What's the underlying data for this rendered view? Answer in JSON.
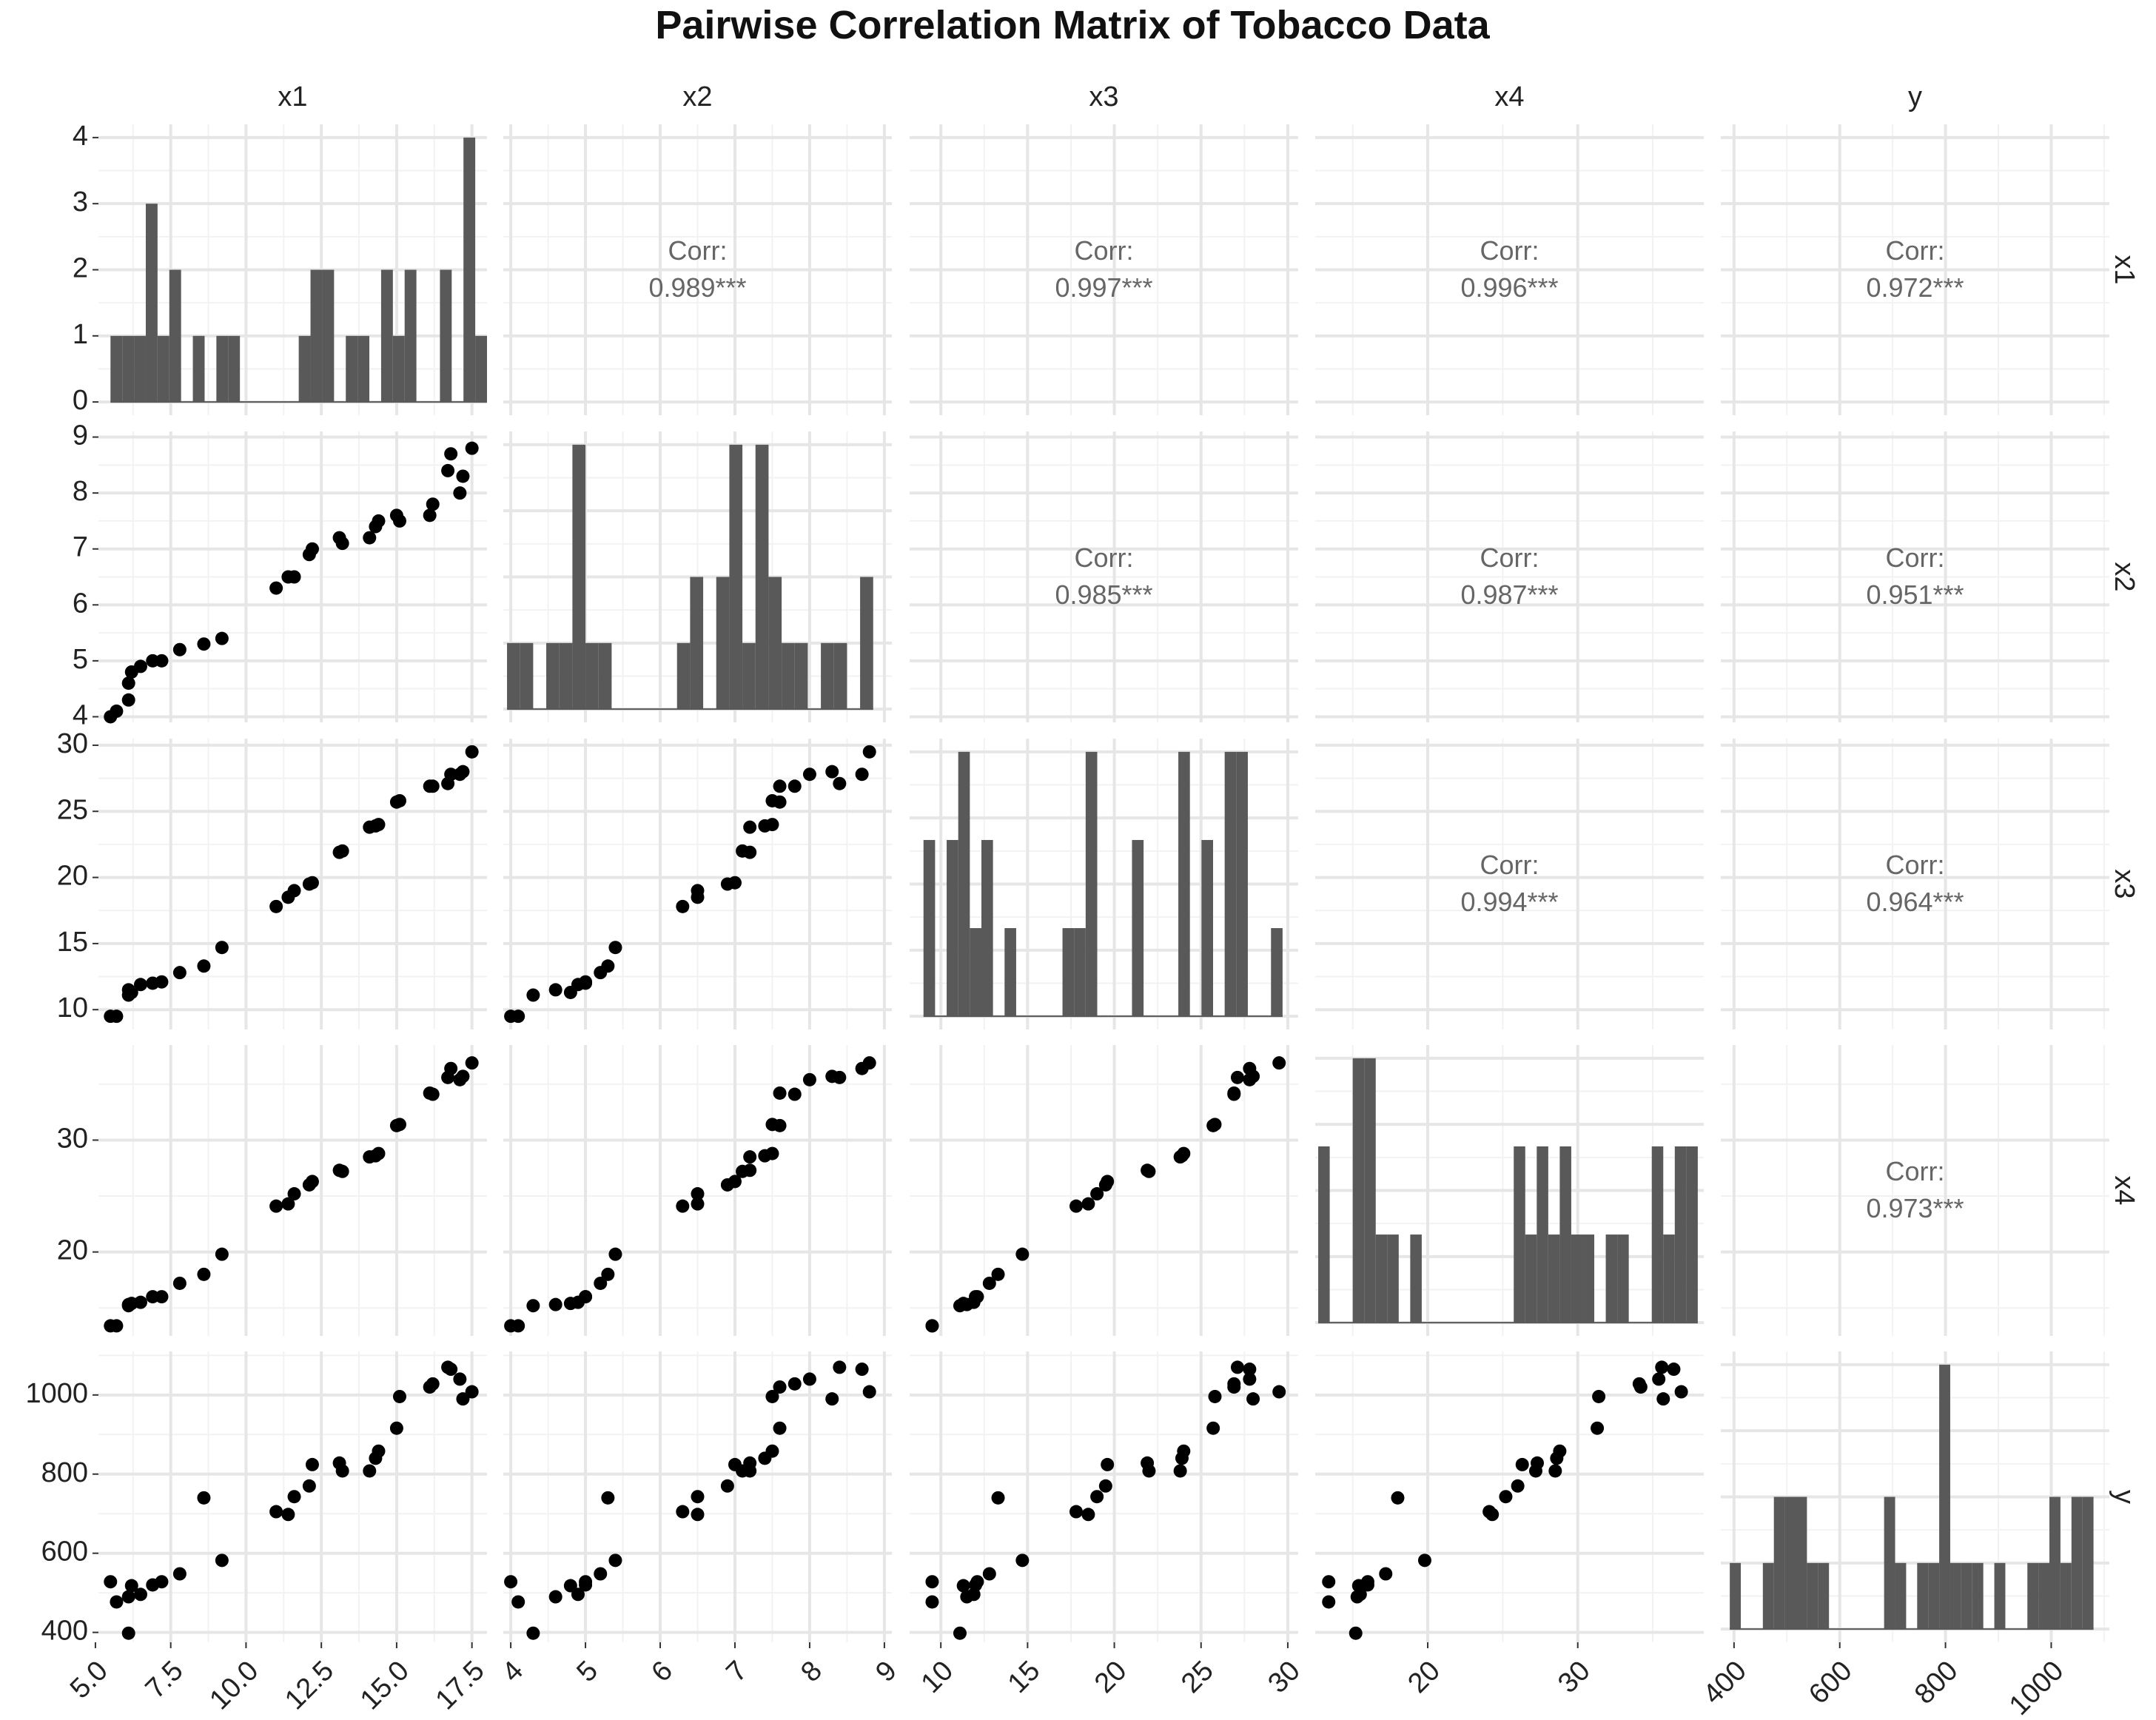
{
  "title": "Pairwise Correlation Matrix of Tobacco Data",
  "chart_data": {
    "type": "pairs",
    "title": "Pairwise Correlation Matrix of Tobacco Data",
    "variables": [
      "x1",
      "x2",
      "x3",
      "x4",
      "y"
    ],
    "corr_label": "Corr:",
    "correlations": [
      {
        "row": "x1",
        "col": "x2",
        "text": "0.989***"
      },
      {
        "row": "x1",
        "col": "x3",
        "text": "0.997***"
      },
      {
        "row": "x1",
        "col": "x4",
        "text": "0.996***"
      },
      {
        "row": "x1",
        "col": "y",
        "text": "0.972***"
      },
      {
        "row": "x2",
        "col": "x3",
        "text": "0.985***"
      },
      {
        "row": "x2",
        "col": "x4",
        "text": "0.987***"
      },
      {
        "row": "x2",
        "col": "y",
        "text": "0.951***"
      },
      {
        "row": "x3",
        "col": "x4",
        "text": "0.994***"
      },
      {
        "row": "x3",
        "col": "y",
        "text": "0.964***"
      },
      {
        "row": "x4",
        "col": "y",
        "text": "0.973***"
      }
    ],
    "x_axes": {
      "x1": {
        "range": [
          5.1,
          18.0
        ],
        "ticks": [
          "5.0",
          "7.5",
          "10.0",
          "12.5",
          "15.0",
          "17.5"
        ]
      },
      "x2": {
        "range": [
          3.9,
          9.1
        ],
        "ticks": [
          "4",
          "5",
          "6",
          "7",
          "8",
          "9"
        ]
      },
      "x3": {
        "range": [
          8.2,
          30.6
        ],
        "ticks": [
          "10",
          "15",
          "20",
          "25",
          "30"
        ]
      },
      "x4": {
        "range": [
          12.5,
          38.4
        ],
        "ticks": [
          "20",
          "30"
        ]
      },
      "y": {
        "range": [
          375,
          1110
        ],
        "ticks": [
          "400",
          "600",
          "800",
          "1000"
        ]
      }
    },
    "y_axes": {
      "x1": {
        "range": [
          -0.2,
          4.2
        ],
        "ticks": [
          "0",
          "1",
          "2",
          "3",
          "4"
        ]
      },
      "x2": {
        "range": [
          3.9,
          9.1
        ],
        "ticks": [
          "4",
          "5",
          "6",
          "7",
          "8",
          "9"
        ]
      },
      "x3": {
        "range": [
          8.5,
          30.5
        ],
        "ticks": [
          "10",
          "15",
          "20",
          "25",
          "30"
        ]
      },
      "x4": {
        "range": [
          12.5,
          38.5
        ],
        "ticks": [
          "20",
          "30"
        ]
      },
      "y": {
        "range": [
          375,
          1110
        ],
        "ticks": [
          "400",
          "600",
          "800",
          "1000"
        ]
      }
    },
    "observations": {
      "x1": [
        5.5,
        5.7,
        6.1,
        6.1,
        6.2,
        6.5,
        6.9,
        7.2,
        7.8,
        8.6,
        9.2,
        11.0,
        11.4,
        11.6,
        12.1,
        12.2,
        13.1,
        13.2,
        14.1,
        14.3,
        14.4,
        15.0,
        15.1,
        16.1,
        16.2,
        16.7,
        16.8,
        17.1,
        17.2,
        17.5
      ],
      "x2": [
        4.0,
        4.1,
        4.3,
        4.6,
        4.8,
        4.9,
        5.0,
        5.0,
        5.2,
        5.3,
        5.4,
        6.3,
        6.5,
        6.5,
        6.9,
        7.0,
        7.2,
        7.1,
        7.2,
        7.4,
        7.5,
        7.6,
        7.5,
        7.6,
        7.8,
        8.4,
        8.7,
        8.0,
        8.3,
        8.8
      ],
      "x3": [
        9.5,
        9.5,
        11.1,
        11.5,
        11.3,
        11.9,
        12.0,
        12.1,
        12.8,
        13.3,
        14.7,
        17.8,
        18.5,
        19.0,
        19.5,
        19.6,
        21.9,
        22.0,
        23.8,
        23.9,
        24.0,
        25.7,
        25.8,
        26.9,
        26.9,
        27.1,
        27.8,
        27.8,
        28.0,
        29.5
      ],
      "x4": [
        13.4,
        13.4,
        15.2,
        15.3,
        15.4,
        15.5,
        16.0,
        16.0,
        17.2,
        18.0,
        19.8,
        24.1,
        24.3,
        25.2,
        26.0,
        26.3,
        27.3,
        27.2,
        28.5,
        28.6,
        28.8,
        31.3,
        31.4,
        34.2,
        34.1,
        35.6,
        36.4,
        35.4,
        35.7,
        36.9
      ],
      "y": [
        528,
        477,
        398,
        490,
        518,
        496,
        520,
        528,
        548,
        740,
        582,
        705,
        698,
        743,
        770,
        824,
        828,
        808,
        808,
        840,
        858,
        916,
        996,
        1020,
        1028,
        1070,
        1065,
        1040,
        990,
        1008
      ]
    },
    "histograms": {
      "x1": {
        "edges": [
          5.5,
          18.0
        ],
        "counts": [
          1,
          1,
          1,
          3,
          1,
          2,
          0,
          1,
          0,
          1,
          1,
          0,
          0,
          0,
          0,
          0,
          1,
          2,
          2,
          0,
          1,
          1,
          0,
          2,
          1,
          2,
          0,
          0,
          2,
          0,
          4,
          1
        ]
      },
      "x2": {
        "edges": [
          3.95,
          8.85
        ],
        "counts": [
          1,
          1,
          0,
          1,
          1,
          4,
          1,
          1,
          0,
          0,
          0,
          0,
          0,
          1,
          2,
          0,
          2,
          4,
          1,
          4,
          2,
          1,
          1,
          0,
          1,
          1,
          0,
          2
        ]
      },
      "x3": {
        "edges": [
          9.0,
          29.7
        ],
        "counts": [
          2,
          0,
          2,
          3,
          1,
          2,
          0,
          1,
          0,
          0,
          0,
          0,
          1,
          1,
          3,
          0,
          0,
          0,
          2,
          0,
          0,
          0,
          3,
          0,
          2,
          0,
          3,
          3,
          0,
          0,
          1
        ]
      },
      "x4": {
        "edges": [
          12.7,
          38.0
        ],
        "counts": [
          2,
          0,
          0,
          3,
          3,
          1,
          1,
          0,
          1,
          0,
          0,
          0,
          0,
          0,
          0,
          0,
          0,
          2,
          1,
          2,
          1,
          2,
          1,
          1,
          0,
          1,
          1,
          0,
          0,
          2,
          1,
          2,
          2
        ]
      },
      "y": {
        "edges": [
          392,
          1080
        ],
        "counts": [
          1,
          0,
          0,
          1,
          2,
          2,
          2,
          1,
          1,
          0,
          0,
          0,
          0,
          0,
          2,
          1,
          0,
          1,
          1,
          4,
          1,
          1,
          1,
          0,
          1,
          0,
          0,
          1,
          1,
          2,
          1,
          2,
          2
        ]
      }
    }
  }
}
